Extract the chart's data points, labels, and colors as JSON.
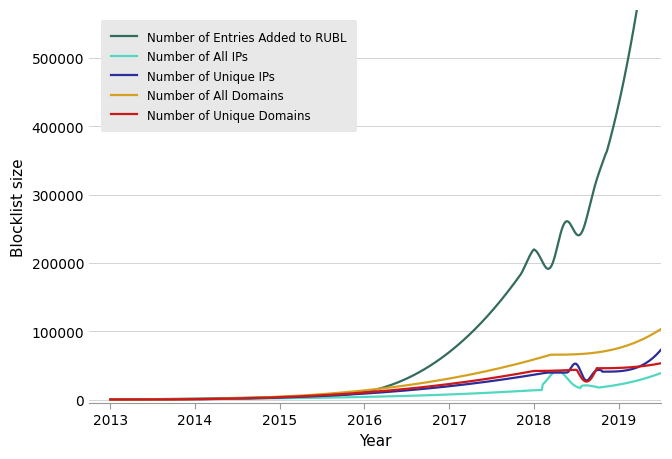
{
  "xlabel": "Year",
  "ylabel": "Blocklist size",
  "xlim": [
    2012.75,
    2019.5
  ],
  "ylim": [
    -5000,
    570000
  ],
  "yticks": [
    0,
    100000,
    200000,
    300000,
    400000,
    500000
  ],
  "xticks": [
    2013,
    2014,
    2015,
    2016,
    2017,
    2018,
    2019
  ],
  "series": {
    "rubl": {
      "label": "Number of Entries Added to RUBL",
      "color": "#336b5e",
      "linewidth": 1.6
    },
    "all_ips": {
      "label": "Number of All IPs",
      "color": "#50d8c0",
      "linewidth": 1.6
    },
    "unique_ips": {
      "label": "Number of Unique IPs",
      "color": "#2c2c9a",
      "linewidth": 1.6
    },
    "all_domains": {
      "label": "Number of All Domains",
      "color": "#d4a020",
      "linewidth": 1.6
    },
    "unique_domains": {
      "label": "Number of Unique Domains",
      "color": "#cc1818",
      "linewidth": 1.6
    }
  },
  "legend_bg": "#e8e8e8",
  "bg_color": "#ffffff",
  "grid_color": "#cccccc"
}
